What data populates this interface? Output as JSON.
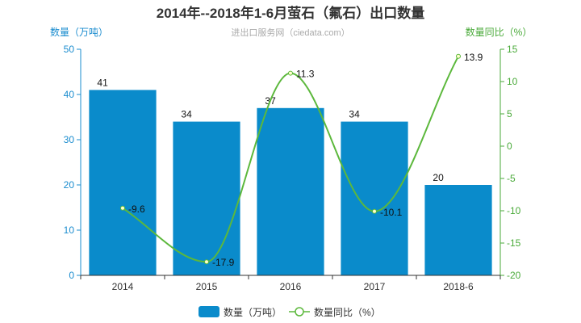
{
  "chart_data": {
    "type": "bar",
    "title": "2014年--2018年1-6月萤石（氟石）出口数量",
    "subtitle": "进出口服务网（ciedata.com）",
    "categories": [
      "2014",
      "2015",
      "2016",
      "2017",
      "2018-6"
    ],
    "y_left": {
      "label": "数量（万吨）",
      "ylim": [
        0,
        50
      ],
      "ticks": [
        0,
        10,
        20,
        30,
        40,
        50
      ]
    },
    "y_right": {
      "label": "数量同比（%）",
      "ylim": [
        -20,
        15
      ],
      "ticks": [
        -20,
        -15,
        -10,
        -5,
        0,
        5,
        10,
        15
      ]
    },
    "series": [
      {
        "name": "数量（万吨）",
        "type": "bar",
        "axis": "left",
        "values": [
          41,
          34,
          37,
          34,
          20
        ]
      },
      {
        "name": "数量同比（%）",
        "type": "line",
        "smooth": true,
        "axis": "right",
        "values": [
          -9.6,
          -17.9,
          11.3,
          -10.1,
          13.9
        ]
      }
    ],
    "grid": false,
    "legend_position": "bottom",
    "colors": {
      "bar": "#0a8bcb",
      "line": "#5cb83c",
      "left_axis": "#1a8ccf",
      "right_axis": "#4aaa3a"
    }
  }
}
